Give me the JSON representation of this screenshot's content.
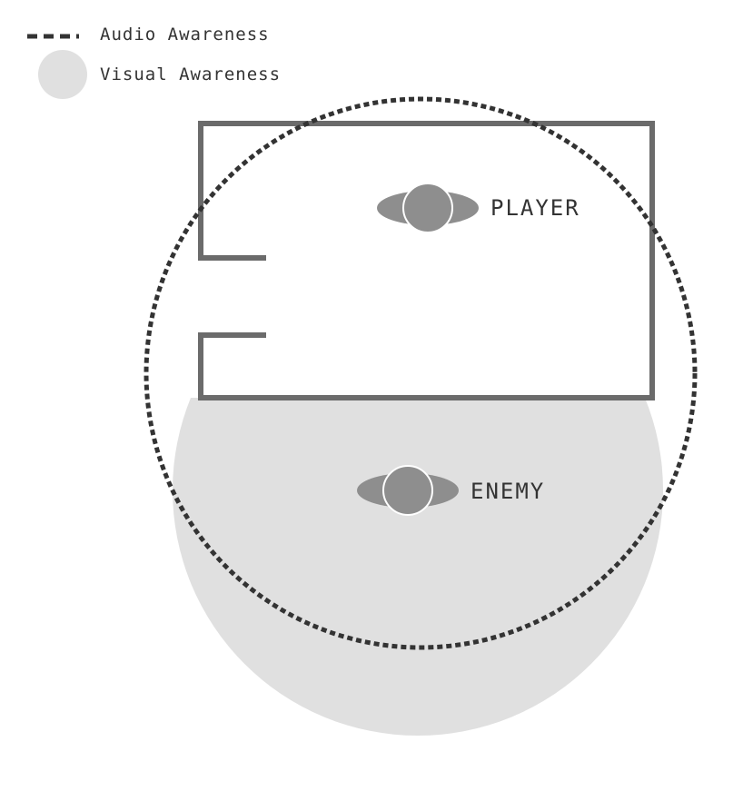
{
  "legend": {
    "audio_label": "Audio Awareness",
    "visual_label": "Visual Awareness"
  },
  "actors": {
    "player_label": "PLAYER",
    "enemy_label": "ENEMY"
  },
  "colors": {
    "wall": "#6b6b6b",
    "visual_area": "#e0e0e0",
    "audio_dash": "#333333",
    "token": "#8e8e8e",
    "label": "#333333"
  }
}
